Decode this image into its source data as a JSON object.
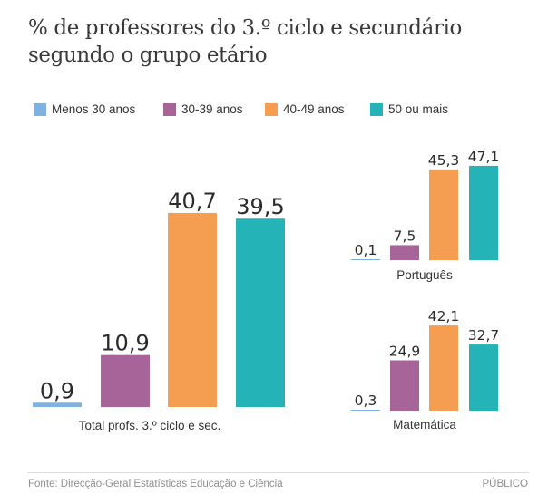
{
  "title_lines": [
    "% de professores do 3.º ciclo e secundário",
    "segundo o grupo etário"
  ],
  "legend": [
    {
      "label": "Menos 30 anos",
      "color": "#7fb2e0"
    },
    {
      "label": "30-39 anos",
      "color": "#a66499"
    },
    {
      "label": "40-49 anos",
      "color": "#f59e52"
    },
    {
      "label": "50 ou mais",
      "color": "#24b4b8"
    }
  ],
  "chart_data": [
    {
      "type": "bar",
      "title": "Total profs. 3.º ciclo e sec.",
      "categories": [
        "Menos 30 anos",
        "30-39 anos",
        "40-49 anos",
        "50 ou mais"
      ],
      "values": [
        0.9,
        10.9,
        40.7,
        39.5
      ],
      "value_labels": [
        "0,9",
        "10,9",
        "40,7",
        "39,5"
      ],
      "unit": "%"
    },
    {
      "type": "bar",
      "title": "Português",
      "categories": [
        "Menos 30 anos",
        "30-39 anos",
        "40-49 anos",
        "50 ou mais"
      ],
      "values": [
        0.1,
        7.5,
        45.3,
        47.1
      ],
      "value_labels": [
        "0,1",
        "7,5",
        "45,3",
        "47,1"
      ],
      "unit": "%"
    },
    {
      "type": "bar",
      "title": "Matemática",
      "categories": [
        "Menos 30 anos",
        "30-39 anos",
        "40-49 anos",
        "50 ou mais"
      ],
      "values": [
        0.3,
        24.9,
        42.1,
        32.7
      ],
      "value_labels": [
        "0,3",
        "24,9",
        "42,1",
        "32,7"
      ],
      "unit": "%"
    }
  ],
  "footer": {
    "source": "Fonte: Direcção-Geral Estatísticas Educação e Ciência",
    "brand": "PÚBLICO"
  }
}
